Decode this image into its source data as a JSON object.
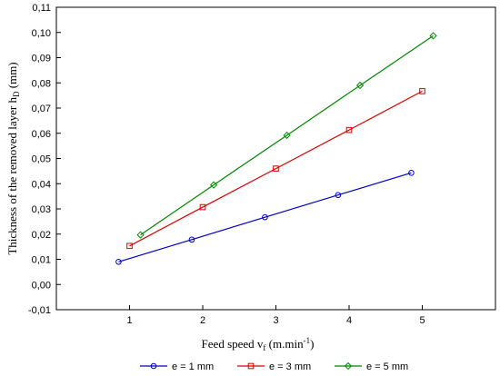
{
  "chart_data": {
    "type": "line",
    "xlabel": {
      "main": "Feed speed v",
      "sub": "f",
      "unit_pre": " (m.min",
      "unit_sup": "-1",
      "unit_post": ")"
    },
    "ylabel": {
      "main": "Thickness of the removed layer h",
      "sub": "D",
      "post": " (mm)"
    },
    "xlim": [
      0,
      6
    ],
    "ylim": [
      -0.01,
      0.11
    ],
    "x_ticks": [
      1,
      2,
      3,
      4,
      5
    ],
    "x_tick_labels": [
      "1",
      "2",
      "3",
      "4",
      "5"
    ],
    "y_ticks": [
      -0.01,
      0.0,
      0.01,
      0.02,
      0.03,
      0.04,
      0.05,
      0.06,
      0.07,
      0.08,
      0.09,
      0.1,
      0.11
    ],
    "y_tick_labels": [
      "-0,01",
      "0,00",
      "0,01",
      "0,02",
      "0,03",
      "0,04",
      "0,05",
      "0,06",
      "0,07",
      "0,08",
      "0,09",
      "0,10",
      "0,11"
    ],
    "grid": false,
    "legend_position": "bottom-center",
    "series": [
      {
        "name": "e = 1 mm",
        "color": "#0000cc",
        "marker": "circle",
        "x": [
          0.85,
          1.85,
          2.85,
          3.85,
          4.85
        ],
        "y": [
          0.009,
          0.0178,
          0.0267,
          0.0355,
          0.0443
        ]
      },
      {
        "name": "e = 3 mm",
        "color": "#dd0000",
        "marker": "square",
        "x": [
          1.0,
          2.0,
          3.0,
          4.0,
          5.0
        ],
        "y": [
          0.0153,
          0.0307,
          0.046,
          0.0613,
          0.0767
        ]
      },
      {
        "name": "e = 5 mm",
        "color": "#008800",
        "marker": "diamond",
        "x": [
          1.15,
          2.15,
          3.15,
          4.15,
          5.15
        ],
        "y": [
          0.0197,
          0.0395,
          0.0592,
          0.079,
          0.0987
        ]
      }
    ]
  }
}
